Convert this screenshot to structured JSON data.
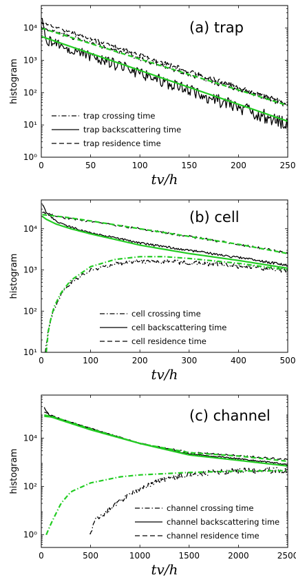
{
  "colors": {
    "simulation": "#000000",
    "theory": "#22cc22"
  },
  "chart_data": [
    {
      "panel": "trap",
      "type": "line",
      "title": "(a) trap",
      "xlabel": "tv/h",
      "ylabel": "histogram",
      "xlim": [
        0,
        250
      ],
      "ylim": [
        1,
        50000
      ],
      "yscale": "log",
      "xticks": [
        0,
        50,
        100,
        150,
        200,
        250
      ],
      "yticks": [
        1,
        10,
        100,
        1000,
        10000
      ],
      "legend_position": "bottom-left",
      "legend": [
        "trap crossing time",
        "trap backscattering time",
        "trap residence time"
      ],
      "series": [
        {
          "name": "trap crossing time",
          "style": "dashdot",
          "color": "#000000",
          "noise": 0.06,
          "x": [
            0,
            250
          ],
          "y": [
            10500,
            42
          ]
        },
        {
          "name": "trap backscattering time",
          "style": "solid",
          "color": "#000000",
          "noise": 0.15,
          "x": [
            0,
            5,
            250
          ],
          "y": [
            20000,
            4200,
            10
          ]
        },
        {
          "name": "trap residence time",
          "style": "dashed",
          "color": "#000000",
          "noise": 0.05,
          "x": [
            0,
            250
          ],
          "y": [
            15000,
            45
          ]
        },
        {
          "style": "solid",
          "color": "#22cc22",
          "noise": 0,
          "x": [
            0,
            250
          ],
          "y": [
            5500,
            13
          ]
        },
        {
          "style": "dashed",
          "color": "#22cc22",
          "noise": 0,
          "x": [
            0,
            250
          ],
          "y": [
            10000,
            40
          ]
        }
      ]
    },
    {
      "panel": "cell",
      "type": "line",
      "title": "(b) cell",
      "xlabel": "tv/h",
      "ylabel": "histogram",
      "xlim": [
        0,
        500
      ],
      "ylim": [
        10,
        50000
      ],
      "yscale": "log",
      "xticks": [
        0,
        100,
        200,
        300,
        400,
        500
      ],
      "yticks": [
        10,
        100,
        1000,
        10000
      ],
      "legend_position": "bottom-center",
      "legend": [
        "cell crossing time",
        "cell backscattering time",
        "cell residence time"
      ],
      "series": [
        {
          "name": "cell crossing time",
          "style": "dashdot",
          "color": "#000000",
          "noise": 0.04,
          "x": [
            8,
            15,
            25,
            40,
            60,
            100,
            150,
            200,
            250,
            300,
            350,
            400,
            450,
            500
          ],
          "y": [
            10,
            40,
            110,
            250,
            500,
            1000,
            1400,
            1600,
            1600,
            1500,
            1400,
            1250,
            1100,
            950
          ]
        },
        {
          "name": "cell backscattering time",
          "style": "solid",
          "color": "#000000",
          "noise": 0.02,
          "x": [
            2,
            10,
            30,
            60,
            100,
            150,
            200,
            300,
            400,
            500
          ],
          "y": [
            40000,
            25000,
            15000,
            11000,
            8000,
            6000,
            4500,
            3000,
            2000,
            1300
          ]
        },
        {
          "name": "cell residence time",
          "style": "dashed",
          "color": "#000000",
          "noise": 0.02,
          "x": [
            2,
            50,
            100,
            200,
            300,
            400,
            500
          ],
          "y": [
            25000,
            18000,
            15000,
            10000,
            6500,
            4200,
            2600
          ]
        },
        {
          "style": "dashdot",
          "color": "#22cc22",
          "noise": 0,
          "x": [
            10,
            15,
            25,
            40,
            60,
            100,
            150,
            200,
            250,
            300,
            400,
            500
          ],
          "y": [
            10,
            40,
            120,
            280,
            560,
            1200,
            1800,
            2100,
            2100,
            1900,
            1450,
            1000
          ]
        },
        {
          "style": "solid",
          "color": "#22cc22",
          "noise": 0,
          "x": [
            2,
            10,
            30,
            60,
            100,
            150,
            200,
            300,
            400,
            500
          ],
          "y": [
            20000,
            17000,
            13000,
            10000,
            7500,
            5500,
            4000,
            2500,
            1700,
            1100
          ]
        },
        {
          "style": "dashed",
          "color": "#22cc22",
          "noise": 0,
          "x": [
            2,
            50,
            100,
            200,
            300,
            400,
            500
          ],
          "y": [
            22000,
            19000,
            15500,
            10000,
            6500,
            4200,
            2500
          ]
        }
      ]
    },
    {
      "panel": "channel",
      "type": "line",
      "title": "(c) channel",
      "xlabel": "tv/h",
      "ylabel": "histogram",
      "xlim": [
        0,
        2500
      ],
      "ylim": [
        0.3,
        600000
      ],
      "yscale": "log",
      "xticks": [
        0,
        500,
        1000,
        1500,
        2000,
        2500
      ],
      "yticks": [
        1,
        100,
        10000
      ],
      "legend_position": "bottom-right",
      "legend": [
        "channel crossing time",
        "channel backscattering time",
        "channel residence time"
      ],
      "series": [
        {
          "name": "channel crossing time",
          "style": "dashdot",
          "color": "#000000",
          "noise": 0.08,
          "x": [
            490,
            550,
            650,
            800,
            1000,
            1200,
            1500,
            1800,
            2100,
            2500
          ],
          "y": [
            1,
            4,
            8,
            25,
            80,
            180,
            320,
            400,
            450,
            480
          ]
        },
        {
          "name": "channel backscattering time",
          "style": "solid",
          "color": "#000000",
          "noise": 0.02,
          "x": [
            30,
            80,
            200,
            500,
            1000,
            1500,
            2000,
            2500
          ],
          "y": [
            180000,
            90000,
            60000,
            25000,
            6000,
            2200,
            1400,
            800
          ]
        },
        {
          "name": "channel residence time",
          "style": "dashed",
          "color": "#000000",
          "noise": 0.02,
          "x": [
            30,
            80,
            200,
            500,
            1000,
            1500,
            2000,
            2500
          ],
          "y": [
            120000,
            100000,
            60000,
            25000,
            6000,
            2600,
            1900,
            1300
          ]
        },
        {
          "style": "dashdot",
          "color": "#22cc22",
          "noise": 0,
          "x": [
            50,
            100,
            200,
            300,
            500,
            800,
            1000,
            1500,
            2000,
            2500
          ],
          "y": [
            1,
            3,
            20,
            60,
            140,
            250,
            300,
            380,
            430,
            450
          ]
        },
        {
          "style": "solid",
          "color": "#22cc22",
          "noise": 0,
          "x": [
            30,
            100,
            200,
            500,
            1000,
            1500,
            2000,
            2500
          ],
          "y": [
            80000,
            75000,
            55000,
            22000,
            6000,
            2000,
            1200,
            700
          ]
        },
        {
          "style": "dashed",
          "color": "#22cc22",
          "noise": 0,
          "x": [
            30,
            100,
            200,
            500,
            1000,
            1500,
            2000,
            2500
          ],
          "y": [
            90000,
            80000,
            60000,
            24000,
            6000,
            2500,
            1800,
            1100
          ]
        }
      ]
    }
  ]
}
